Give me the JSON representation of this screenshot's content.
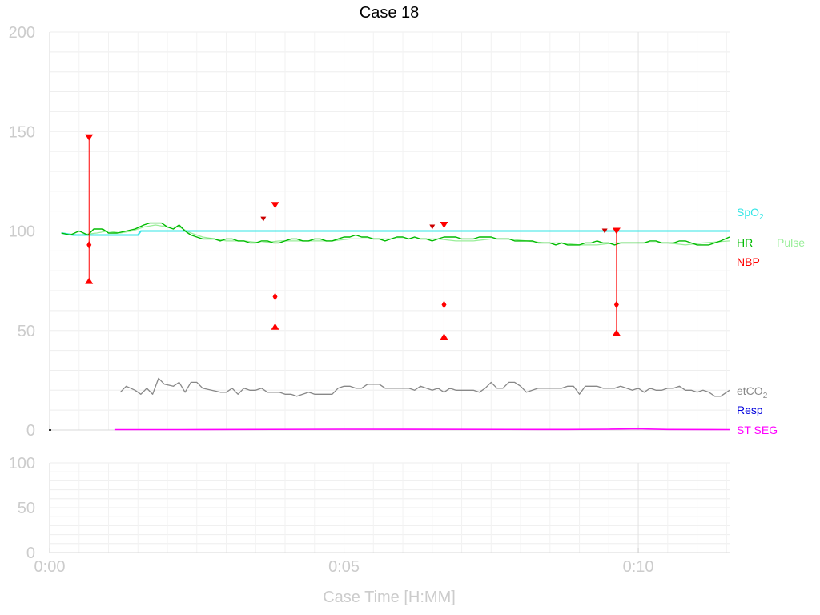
{
  "chart_data": {
    "type": "line",
    "title": "Case 18",
    "xlabel": "Case Time [H:MM]",
    "x_ticks": [
      "0:00",
      "0:05",
      "0:10"
    ],
    "x_tick_minutes": [
      0,
      5,
      10
    ],
    "xlim_minutes": [
      0,
      11.55
    ],
    "grid": true,
    "legend_position": "right",
    "colors": {
      "SpO2": "#33e6e6",
      "HR": "#00bb00",
      "Pulse": "#99ee99",
      "NBP": "#ff0000",
      "etCO2": "#888888",
      "Resp": "#0000dd",
      "ST SEG": "#ff00ff"
    },
    "top_panel": {
      "ylim": [
        0,
        200
      ],
      "y_ticks": [
        0,
        50,
        100,
        150,
        200
      ],
      "legend": {
        "spo2_prefix": "SpO",
        "spo2_sub": "2",
        "hr": "HR",
        "pulse": "Pulse",
        "nbp": "NBP",
        "etco2_prefix": "etCO",
        "etco2_sub": "2",
        "resp": "Resp",
        "st": "ST SEG"
      },
      "series": [
        {
          "name": "SpO2",
          "x": [
            0.2,
            0.4,
            0.6,
            0.9,
            1.2,
            1.5,
            1.55,
            3.0,
            6.0,
            9.0,
            11.55
          ],
          "y": [
            99,
            98,
            98,
            98,
            98,
            98,
            100,
            100,
            100,
            100,
            100
          ]
        },
        {
          "name": "HR",
          "x": [
            0.2,
            0.35,
            0.5,
            0.65,
            0.75,
            0.9,
            1.0,
            1.15,
            1.3,
            1.45,
            1.6,
            1.7,
            1.8,
            1.9,
            2.0,
            2.1,
            2.2,
            2.3,
            2.4,
            2.5,
            2.6,
            2.7,
            2.8,
            2.9,
            3.0,
            3.1,
            3.2,
            3.3,
            3.4,
            3.5,
            3.6,
            3.7,
            3.8,
            3.9,
            4.0,
            4.1,
            4.2,
            4.3,
            4.4,
            4.5,
            4.6,
            4.7,
            4.8,
            4.9,
            5.0,
            5.1,
            5.2,
            5.3,
            5.4,
            5.5,
            5.6,
            5.7,
            5.8,
            5.9,
            6.0,
            6.1,
            6.2,
            6.3,
            6.4,
            6.5,
            6.6,
            6.7,
            6.8,
            6.9,
            7.0,
            7.1,
            7.2,
            7.3,
            7.4,
            7.5,
            7.6,
            7.7,
            7.8,
            7.9,
            8.0,
            8.1,
            8.2,
            8.3,
            8.4,
            8.5,
            8.6,
            8.7,
            8.8,
            8.9,
            9.0,
            9.1,
            9.2,
            9.3,
            9.4,
            9.5,
            9.6,
            9.7,
            9.8,
            9.9,
            10.0,
            10.1,
            10.2,
            10.3,
            10.4,
            10.5,
            10.6,
            10.7,
            10.8,
            10.9,
            11.0,
            11.1,
            11.2,
            11.3,
            11.4,
            11.55
          ],
          "y": [
            99,
            98,
            100,
            98,
            101,
            101,
            99,
            99,
            100,
            101,
            103,
            104,
            104,
            104,
            102,
            101,
            103,
            100,
            98,
            97,
            96,
            96,
            96,
            95,
            96,
            96,
            95,
            95,
            94,
            94,
            95,
            95,
            94,
            94,
            95,
            96,
            96,
            95,
            95,
            96,
            96,
            95,
            95,
            96,
            97,
            97,
            98,
            97,
            97,
            96,
            96,
            95,
            96,
            97,
            97,
            96,
            97,
            96,
            96,
            95,
            96,
            97,
            97,
            97,
            96,
            96,
            96,
            97,
            97,
            97,
            96,
            96,
            96,
            95,
            95,
            95,
            95,
            94,
            94,
            94,
            93,
            94,
            93,
            93,
            93,
            94,
            94,
            95,
            94,
            94,
            93,
            94,
            94,
            94,
            94,
            94,
            95,
            95,
            94,
            94,
            94,
            95,
            95,
            94,
            93,
            93,
            93,
            94,
            95,
            97
          ]
        },
        {
          "name": "Pulse",
          "x": [
            0.2,
            0.5,
            0.8,
            1.0,
            1.2,
            1.4,
            1.6,
            1.8,
            2.0,
            2.2,
            2.4,
            2.6,
            2.8,
            3.0,
            3.3,
            3.6,
            3.9,
            4.2,
            4.5,
            4.8,
            5.1,
            5.4,
            5.7,
            6.0,
            6.3,
            6.6,
            6.9,
            7.2,
            7.5,
            7.8,
            8.1,
            8.4,
            8.7,
            9.0,
            9.3,
            9.6,
            9.9,
            10.2,
            10.5,
            10.8,
            11.1,
            11.55
          ],
          "y": [
            99,
            98,
            99,
            100,
            99,
            100,
            102,
            103,
            102,
            102,
            99,
            97,
            96,
            95,
            95,
            94,
            95,
            95,
            95,
            95,
            96,
            96,
            96,
            96,
            96,
            96,
            95,
            95,
            96,
            96,
            95,
            94,
            94,
            93,
            93,
            94,
            94,
            94,
            94,
            93,
            94,
            95
          ]
        },
        {
          "name": "etCO2",
          "x": [
            1.2,
            1.3,
            1.45,
            1.55,
            1.65,
            1.75,
            1.85,
            1.95,
            2.1,
            2.2,
            2.3,
            2.4,
            2.5,
            2.6,
            2.75,
            2.9,
            3.0,
            3.1,
            3.2,
            3.3,
            3.4,
            3.5,
            3.6,
            3.7,
            3.8,
            3.9,
            4.0,
            4.1,
            4.2,
            4.3,
            4.4,
            4.5,
            4.6,
            4.7,
            4.8,
            4.9,
            5.0,
            5.1,
            5.2,
            5.3,
            5.4,
            5.5,
            5.6,
            5.7,
            5.8,
            5.9,
            6.0,
            6.1,
            6.2,
            6.3,
            6.4,
            6.5,
            6.6,
            6.7,
            6.8,
            6.9,
            7.0,
            7.1,
            7.2,
            7.3,
            7.4,
            7.5,
            7.6,
            7.7,
            7.8,
            7.9,
            8.0,
            8.1,
            8.2,
            8.3,
            8.4,
            8.5,
            8.6,
            8.7,
            8.8,
            8.9,
            9.0,
            9.1,
            9.2,
            9.3,
            9.4,
            9.5,
            9.6,
            9.7,
            9.8,
            9.9,
            10.0,
            10.1,
            10.2,
            10.3,
            10.4,
            10.5,
            10.6,
            10.7,
            10.8,
            10.9,
            11.0,
            11.1,
            11.2,
            11.3,
            11.4,
            11.55
          ],
          "y": [
            19,
            22,
            20,
            18,
            21,
            18,
            26,
            23,
            22,
            24,
            19,
            24,
            24,
            21,
            20,
            19,
            19,
            21,
            18,
            21,
            20,
            20,
            21,
            19,
            19,
            19,
            18,
            18,
            17,
            18,
            19,
            18,
            18,
            18,
            18,
            21,
            22,
            22,
            21,
            21,
            23,
            23,
            23,
            21,
            21,
            21,
            21,
            21,
            20,
            22,
            21,
            20,
            21,
            19,
            21,
            20,
            20,
            20,
            20,
            19,
            21,
            24,
            21,
            21,
            24,
            24,
            22,
            19,
            20,
            21,
            21,
            21,
            21,
            21,
            22,
            22,
            18,
            22,
            22,
            22,
            21,
            21,
            21,
            22,
            21,
            20,
            21,
            19,
            21,
            20,
            20,
            21,
            21,
            22,
            20,
            20,
            19,
            20,
            19,
            17,
            17,
            20
          ]
        },
        {
          "name": "ST SEG",
          "x": [
            1.1,
            1.5,
            2.2,
            5.0,
            8.3,
            8.8,
            9.5,
            10.0,
            10.5,
            11.55
          ],
          "y": [
            0.2,
            0.2,
            0.2,
            0.4,
            0.3,
            0.3,
            0.4,
            0.6,
            0.3,
            0.2
          ]
        }
      ],
      "nbp": [
        {
          "x": 0.67,
          "systolic": 147,
          "diastolic": 75,
          "mean": 93
        },
        {
          "x": 3.83,
          "systolic": 113,
          "diastolic": 52,
          "mean": 67
        },
        {
          "x": 6.7,
          "systolic": 103,
          "diastolic": 47,
          "mean": 63
        },
        {
          "x": 9.63,
          "systolic": 100,
          "diastolic": 49,
          "mean": 63
        }
      ],
      "small_markers": [
        {
          "x": 3.63,
          "y": 106
        },
        {
          "x": 6.5,
          "y": 102
        },
        {
          "x": 9.43,
          "y": 100
        }
      ]
    },
    "bottom_panel": {
      "ylim": [
        0,
        100
      ],
      "y_ticks": [
        0,
        50,
        100
      ],
      "series": []
    }
  }
}
